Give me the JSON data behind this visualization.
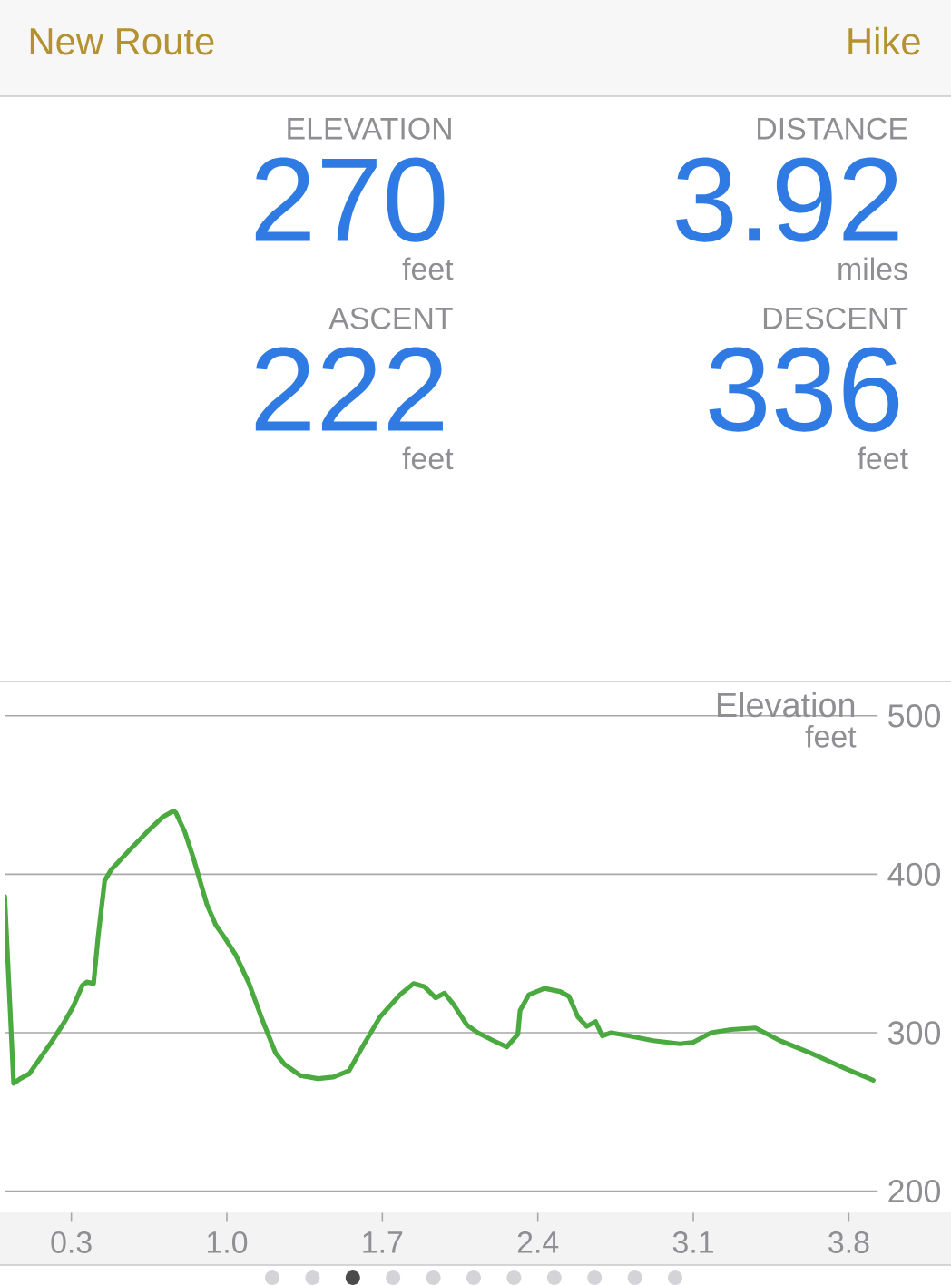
{
  "chart_data": [
    {
      "type": "other",
      "title": "New Route",
      "annotations": [
        "Hike",
        "ELEVATION",
        "270",
        "feet",
        "DISTANCE",
        "3.92",
        "miles",
        "ASCENT",
        "222",
        "feet",
        "DESCENT",
        "336",
        "feet"
      ]
    },
    {
      "type": "line",
      "ylabel": "Elevation",
      "annotations": [
        "feet"
      ],
      "x": [
        0,
        0.04,
        0.07,
        0.11,
        0.16,
        0.21,
        0.27,
        0.31,
        0.35,
        0.37,
        0.4,
        0.42,
        0.45,
        0.48,
        0.56,
        0.65,
        0.71,
        0.76,
        0.77,
        0.81,
        0.85,
        0.91,
        0.95,
        0.99,
        1.04,
        1.1,
        1.16,
        1.22,
        1.26,
        1.33,
        1.41,
        1.48,
        1.55,
        1.61,
        1.69,
        1.78,
        1.84,
        1.89,
        1.94,
        1.98,
        2.02,
        2.08,
        2.13,
        2.2,
        2.26,
        2.31,
        2.32,
        2.36,
        2.43,
        2.5,
        2.54,
        2.58,
        2.62,
        2.66,
        2.69,
        2.73,
        2.81,
        2.92,
        3.04,
        3.1,
        3.18,
        3.27,
        3.38,
        3.49,
        3.63,
        3.79,
        3.91
      ],
      "values": [
        386,
        268,
        271,
        274,
        284,
        294,
        307,
        317,
        330,
        332,
        331,
        360,
        396,
        403,
        415,
        428,
        436,
        440,
        439,
        427,
        410,
        381,
        368,
        360,
        349,
        331,
        308,
        287,
        280,
        273,
        271,
        272,
        276,
        291,
        310,
        324,
        331,
        329,
        322,
        325,
        318,
        305,
        300,
        295,
        291,
        299,
        314,
        324,
        328,
        326,
        323,
        310,
        304,
        307,
        298,
        300,
        298,
        295,
        293,
        294,
        300,
        302,
        303,
        295,
        287,
        277,
        270
      ],
      "color": "#4aa93f",
      "xlim": [
        0,
        3.93
      ],
      "ylim": [
        200,
        500
      ],
      "xticks": [
        0.3,
        {
          "value": 1,
          "label": "1.0"
        },
        1.7,
        2.4,
        3.1,
        3.8
      ],
      "yticks": [
        200,
        300,
        400,
        500
      ],
      "grid": "y"
    }
  ]
}
